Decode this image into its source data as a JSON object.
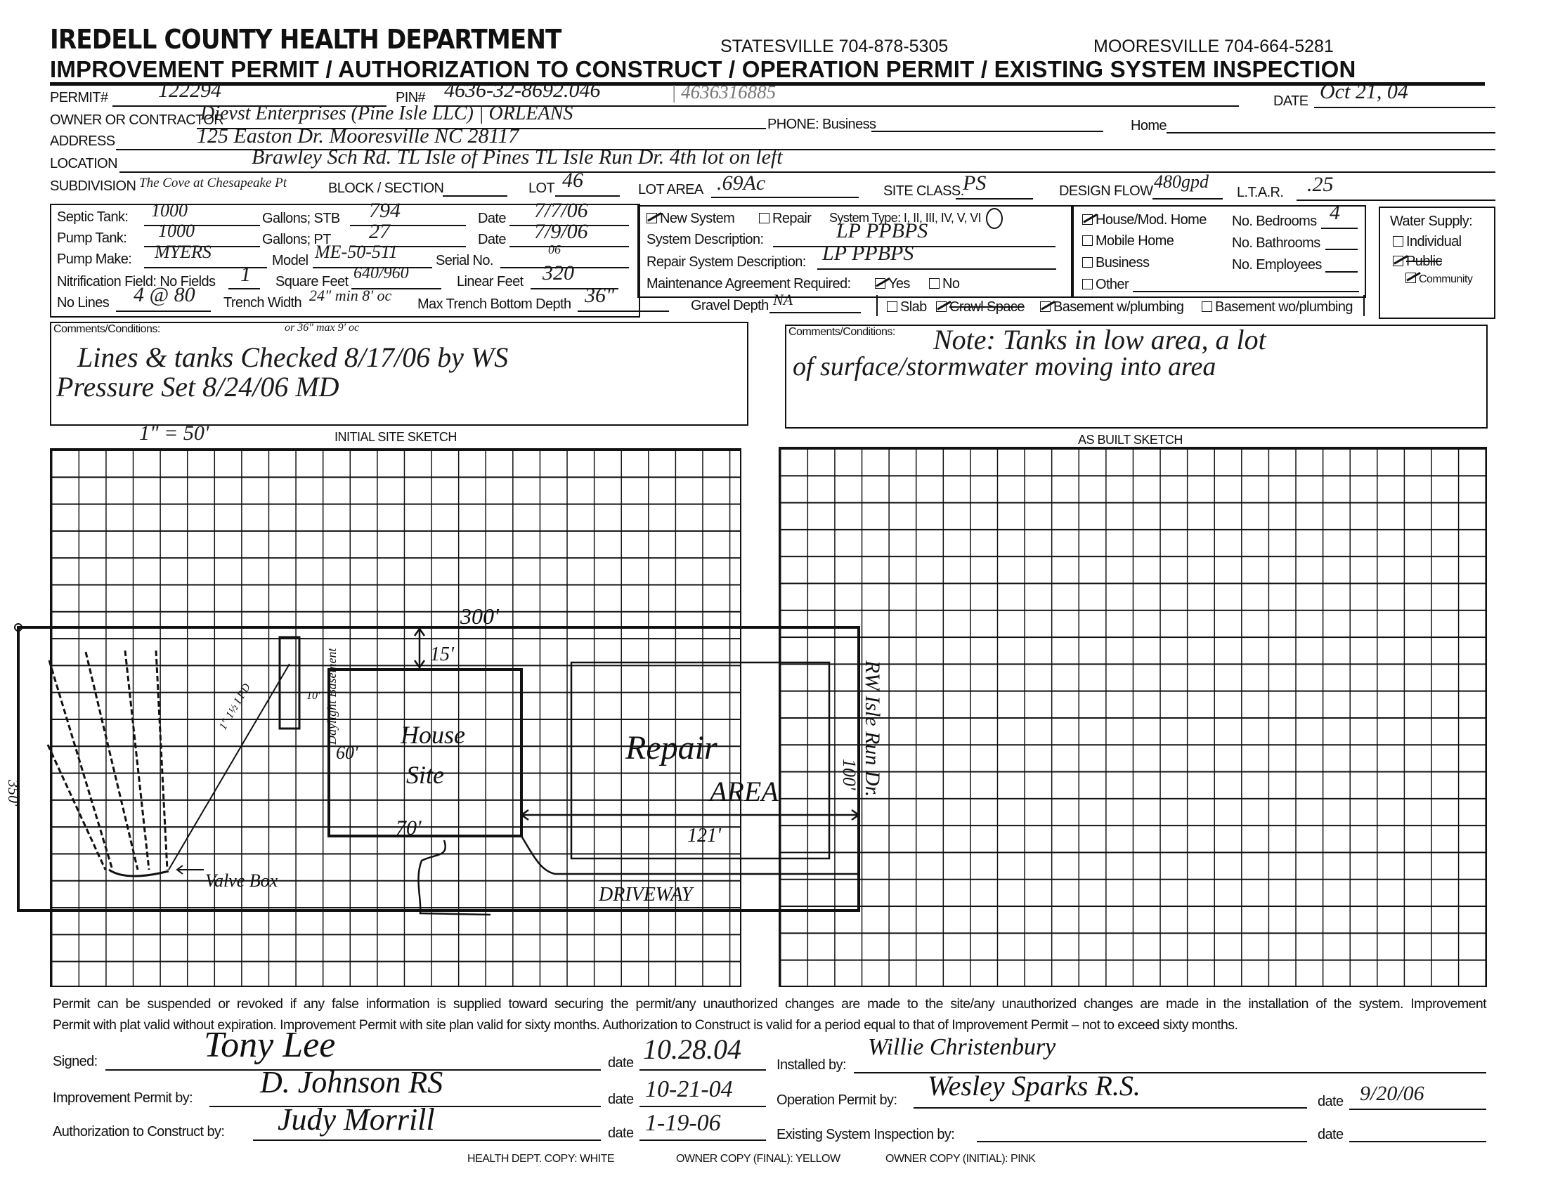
{
  "header": {
    "department": "IREDELL COUNTY HEALTH DEPARTMENT",
    "statesville_phone": "STATESVILLE 704-878-5305",
    "mooresville_phone": "MOORESVILLE 704-664-5281",
    "form_title": "IMPROVEMENT PERMIT / AUTHORIZATION TO CONSTRUCT / OPERATION PERMIT / EXISTING SYSTEM INSPECTION"
  },
  "info": {
    "permit_label": "PERMIT#",
    "permit": "122294",
    "pin_label": "PIN#",
    "pin": "4636-32-8692.046",
    "pin_alt": "| 4636316885",
    "date_label": "DATE",
    "date": "Oct 21, 04",
    "owner_label": "OWNER OR CONTRACTOR",
    "owner": "Dievst Enterprises (Pine Isle LLC) | ORLEANS",
    "phone_business_label": "PHONE: Business",
    "phone_business": "",
    "home_label": "Home",
    "home": "",
    "address_label": "ADDRESS",
    "address": "125 Easton Dr. Mooresville NC 28117",
    "location_label": "LOCATION",
    "location": "Brawley Sch Rd.  TL Isle of Pines  TL Isle Run Dr.  4th lot on left",
    "subdivision_label": "SUBDIVISION",
    "subdivision": "The Cove at Chesapeake Pt",
    "block_label": "BLOCK / SECTION",
    "block": "",
    "lot_label": "LOT",
    "lot": "46",
    "lot_area_label": "LOT AREA",
    "lot_area": ".69Ac",
    "site_class_label": "SITE CLASS.",
    "site_class": "PS",
    "design_flow_label": "DESIGN FLOW",
    "design_flow": "480gpd",
    "ltar_label": "L.T.A.R.",
    "ltar": ".25"
  },
  "tanks": {
    "septic_label": "Septic Tank:",
    "septic": "1000",
    "gallons1_label": "Gallons;  STB",
    "stb": "794",
    "date1_label": "Date",
    "date1": "7/7/06",
    "pump_label": "Pump Tank:",
    "pump": "1000",
    "gallons2_label": "Gallons;  PT",
    "pt": "27",
    "date2_label": "Date",
    "date2": "7/9/06",
    "make_label": "Pump Make:",
    "make": "MYERS",
    "model_label": "Model",
    "model": "ME-50-511",
    "serial_label": "Serial No.",
    "serial": "06",
    "nitrification_label": "Nitrification Field: No Fields",
    "fields": "1",
    "sqft_label": "Square Feet",
    "sqft": "640/960",
    "linear_label": "Linear Feet",
    "linear": "320",
    "lines_label": "No Lines",
    "lines": "4 @ 80",
    "trench_label": "Trench Width",
    "trench": "24\" min 8' oc",
    "depth_label": "Max Trench Bottom Depth",
    "depth": "36\"",
    "gravel_label": "Gravel Depth",
    "gravel": "NA"
  },
  "system": {
    "new_label": "New System",
    "new_checked": true,
    "repair_label": "Repair",
    "repair_checked": false,
    "type_label": "System Type: I, II, III, IV, V, VI",
    "type_selected": "IV",
    "desc_label": "System Description:",
    "desc": "LP PPBPS",
    "repair_desc_label": "Repair System Description:",
    "repair_desc": "LP PPBPS",
    "maint_label": "Maintenance Agreement Required:",
    "yes_label": "Yes",
    "yes_checked": true,
    "no_label": "No",
    "no_checked": false,
    "slab_label": "Slab",
    "slab_checked": false,
    "crawl_label": "Crawl Space",
    "crawl_checked": true,
    "bw_label": "Basement w/plumbing",
    "bw_checked": true,
    "bwo_label": "Basement wo/plumbing",
    "bwo_checked": false
  },
  "building": {
    "house_label": "House/Mod. Home",
    "house_checked": true,
    "mobile_label": "Mobile Home",
    "business_label": "Business",
    "other_label": "Other",
    "other": "",
    "bedrooms_label": "No. Bedrooms",
    "bedrooms": "4",
    "bathrooms_label": "No. Bathrooms",
    "bathrooms": "",
    "employees_label": "No. Employees",
    "employees": ""
  },
  "water": {
    "title": "Water Supply:",
    "individual_label": "Individual",
    "individual_checked": false,
    "public_label": "Public",
    "public_checked": true,
    "community_label": "Community",
    "community_checked": true
  },
  "comments_left": {
    "label": "Comments/Conditions:",
    "note": "or 36\" max 9' oc",
    "line1": "Lines & tanks Checked 8/17/06 by WS",
    "line2": "Pressure Set 8/24/06 MD"
  },
  "comments_right": {
    "label": "Comments/Conditions:",
    "line1": "Note: Tanks in low area, a lot",
    "line2": "of surface/stormwater moving into area"
  },
  "sketch": {
    "scale": "1\" = 50'",
    "initial_title": "INITIAL SITE SKETCH",
    "asbuilt_title": "AS BUILT SKETCH",
    "labels": {
      "width": "300'",
      "setback": "15'",
      "house": "House",
      "site": "Site",
      "depth60": "60'",
      "width70": "70'",
      "daylight": "Daylight Basement",
      "repair": "Repair",
      "area": "AREA",
      "dist121": "121'",
      "dist100": "100'",
      "driveway": "DRIVEWAY",
      "valve": "Valve Box",
      "road": "RW Isle Run Dr.",
      "side": "350'",
      "tank_note": "1\" 1½ LPD",
      "dist10": "10'"
    }
  },
  "footer": {
    "notice1": "Permit can be suspended or revoked if any false information is supplied toward securing the permit/any unauthorized changes are made to the site/any unauthorized changes are made in the installation of the system. Improvement",
    "notice2": "Permit with plat valid without expiration. Improvement Permit with site plan valid for sixty months. Authorization to Construct is valid for a period equal to that of Improvement Permit – not to exceed sixty months.",
    "signed_label": "Signed:",
    "signed_sig": "Tony Lee",
    "signed_date": "10.28.04",
    "installed_label": "Installed by:",
    "installed_sig": "Willie Christenbury",
    "improvement_label": "Improvement Permit by:",
    "improvement_sig": "D. Johnson RS",
    "improvement_date": "10-21-04",
    "operation_label": "Operation Permit by:",
    "operation_sig": "Wesley Sparks R.S.",
    "operation_date": "9/20/06",
    "authorization_label": "Authorization to Construct by:",
    "authorization_sig": "Judy Morrill",
    "authorization_date": "1-19-06",
    "existing_label": "Existing System Inspection by:",
    "existing_sig": "",
    "existing_date": "",
    "date_label": "date",
    "copy_white": "HEALTH DEPT. COPY: WHITE",
    "copy_yellow": "OWNER COPY (FINAL): YELLOW",
    "copy_pink": "OWNER COPY (INITIAL): PINK"
  }
}
